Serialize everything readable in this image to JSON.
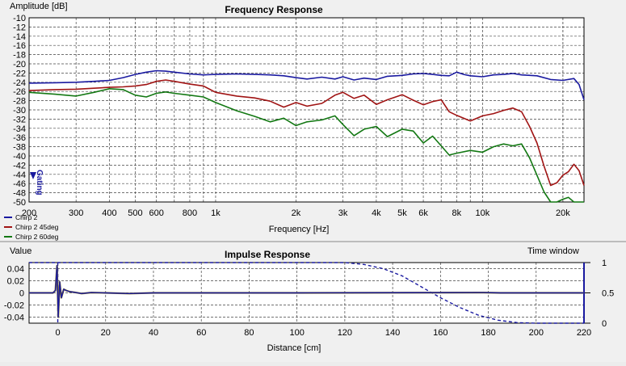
{
  "chart_data": [
    {
      "type": "line",
      "title": "Frequency Response",
      "ylabel": "Amplitude [dB]",
      "xlabel": "Frequency [Hz]",
      "xscale": "log",
      "xlim": [
        200,
        24000
      ],
      "ylim": [
        -50,
        -10
      ],
      "grid": true,
      "legend_position": "bottom-left",
      "cursor_label": "Gating",
      "y_ticks": [
        -10,
        -12,
        -14,
        -16,
        -18,
        -20,
        -22,
        -24,
        -26,
        -28,
        -30,
        -32,
        -34,
        -36,
        -38,
        -40,
        -42,
        -44,
        -46,
        -48,
        -50
      ],
      "x_ticks": [
        {
          "value": 200,
          "label": "200"
        },
        {
          "value": 300,
          "label": "300"
        },
        {
          "value": 400,
          "label": "400"
        },
        {
          "value": 500,
          "label": "500"
        },
        {
          "value": 600,
          "label": "600"
        },
        {
          "value": 800,
          "label": "800"
        },
        {
          "value": 1000,
          "label": "1k"
        },
        {
          "value": 2000,
          "label": "2k"
        },
        {
          "value": 3000,
          "label": "3k"
        },
        {
          "value": 4000,
          "label": "4k"
        },
        {
          "value": 5000,
          "label": "5k"
        },
        {
          "value": 6000,
          "label": "6k"
        },
        {
          "value": 8000,
          "label": "8k"
        },
        {
          "value": 10000,
          "label": "10k"
        },
        {
          "value": 20000,
          "label": "20k"
        }
      ],
      "series": [
        {
          "name": "Chirp 2",
          "color": "#1a1aa0",
          "points": [
            [
              200,
              -24.2
            ],
            [
              250,
              -24.1
            ],
            [
              300,
              -24
            ],
            [
              350,
              -23.8
            ],
            [
              400,
              -23.6
            ],
            [
              450,
              -23
            ],
            [
              500,
              -22.3
            ],
            [
              550,
              -21.8
            ],
            [
              600,
              -21.5
            ],
            [
              650,
              -21.6
            ],
            [
              700,
              -21.8
            ],
            [
              800,
              -22.2
            ],
            [
              900,
              -22.4
            ],
            [
              1000,
              -22.3
            ],
            [
              1200,
              -22.2
            ],
            [
              1400,
              -22.3
            ],
            [
              1600,
              -22.4
            ],
            [
              1800,
              -22.6
            ],
            [
              2000,
              -23
            ],
            [
              2200,
              -23.3
            ],
            [
              2500,
              -22.9
            ],
            [
              2800,
              -23.3
            ],
            [
              3000,
              -22.8
            ],
            [
              3300,
              -23.5
            ],
            [
              3600,
              -23.1
            ],
            [
              4000,
              -23.4
            ],
            [
              4400,
              -22.7
            ],
            [
              5000,
              -22.5
            ],
            [
              5500,
              -22.2
            ],
            [
              6000,
              -22.1
            ],
            [
              6500,
              -22.3
            ],
            [
              7000,
              -22.5
            ],
            [
              7500,
              -22.6
            ],
            [
              8000,
              -21.8
            ],
            [
              8500,
              -22.3
            ],
            [
              9000,
              -22.6
            ],
            [
              10000,
              -22.8
            ],
            [
              11000,
              -22.4
            ],
            [
              12000,
              -22.3
            ],
            [
              13000,
              -22.1
            ],
            [
              14000,
              -22.4
            ],
            [
              16000,
              -22.6
            ],
            [
              18000,
              -23.4
            ],
            [
              20000,
              -23.6
            ],
            [
              22000,
              -23.2
            ],
            [
              23000,
              -24.5
            ],
            [
              24000,
              -27.8
            ]
          ]
        },
        {
          "name": "Chirp 2 45deg",
          "color": "#a01414",
          "points": [
            [
              200,
              -25.8
            ],
            [
              250,
              -25.6
            ],
            [
              300,
              -25.5
            ],
            [
              350,
              -25.3
            ],
            [
              400,
              -25.1
            ],
            [
              450,
              -25
            ],
            [
              500,
              -24.8
            ],
            [
              550,
              -24.5
            ],
            [
              600,
              -23.8
            ],
            [
              650,
              -23.5
            ],
            [
              700,
              -23.8
            ],
            [
              800,
              -24.4
            ],
            [
              900,
              -24.8
            ],
            [
              1000,
              -26.2
            ],
            [
              1200,
              -27
            ],
            [
              1400,
              -27.4
            ],
            [
              1600,
              -28.1
            ],
            [
              1800,
              -29.4
            ],
            [
              2000,
              -28.4
            ],
            [
              2200,
              -29.2
            ],
            [
              2500,
              -28.6
            ],
            [
              2800,
              -26.8
            ],
            [
              3000,
              -26.2
            ],
            [
              3300,
              -27.5
            ],
            [
              3600,
              -26.8
            ],
            [
              4000,
              -28.8
            ],
            [
              4400,
              -27.8
            ],
            [
              5000,
              -26.7
            ],
            [
              5500,
              -27.9
            ],
            [
              6000,
              -28.9
            ],
            [
              6500,
              -28.2
            ],
            [
              7000,
              -27.8
            ],
            [
              7500,
              -30.4
            ],
            [
              8000,
              -31.2
            ],
            [
              9000,
              -32.4
            ],
            [
              10000,
              -31.3
            ],
            [
              11000,
              -30.8
            ],
            [
              12000,
              -30.1
            ],
            [
              13000,
              -29.6
            ],
            [
              14000,
              -30.4
            ],
            [
              15000,
              -33.6
            ],
            [
              16000,
              -37.2
            ],
            [
              17000,
              -42.2
            ],
            [
              18000,
              -46.4
            ],
            [
              19000,
              -45.8
            ],
            [
              20000,
              -44.2
            ],
            [
              21000,
              -43.4
            ],
            [
              22000,
              -41.8
            ],
            [
              23000,
              -43.2
            ],
            [
              24000,
              -46.4
            ]
          ]
        },
        {
          "name": "Chirp 2 60deg",
          "color": "#137813",
          "points": [
            [
              200,
              -26.2
            ],
            [
              250,
              -26.6
            ],
            [
              300,
              -27
            ],
            [
              350,
              -26.2
            ],
            [
              400,
              -25.4
            ],
            [
              450,
              -25.6
            ],
            [
              500,
              -26.8
            ],
            [
              550,
              -27.2
            ],
            [
              600,
              -26.4
            ],
            [
              650,
              -26.1
            ],
            [
              700,
              -26.4
            ],
            [
              800,
              -26.8
            ],
            [
              900,
              -27.2
            ],
            [
              1000,
              -28.4
            ],
            [
              1200,
              -30.2
            ],
            [
              1400,
              -31.4
            ],
            [
              1600,
              -32.6
            ],
            [
              1800,
              -31.8
            ],
            [
              2000,
              -33.4
            ],
            [
              2200,
              -32.6
            ],
            [
              2500,
              -32.2
            ],
            [
              2800,
              -31.3
            ],
            [
              3000,
              -33.2
            ],
            [
              3300,
              -35.6
            ],
            [
              3600,
              -34.2
            ],
            [
              4000,
              -33.6
            ],
            [
              4400,
              -35.8
            ],
            [
              5000,
              -34.2
            ],
            [
              5500,
              -34.6
            ],
            [
              6000,
              -37.2
            ],
            [
              6500,
              -35.7
            ],
            [
              7000,
              -37.8
            ],
            [
              7500,
              -39.8
            ],
            [
              8000,
              -39.4
            ],
            [
              9000,
              -38.8
            ],
            [
              10000,
              -39.2
            ],
            [
              11000,
              -38
            ],
            [
              12000,
              -37.4
            ],
            [
              13000,
              -37.8
            ],
            [
              14000,
              -37.4
            ],
            [
              15000,
              -40.4
            ],
            [
              16000,
              -44.2
            ],
            [
              17000,
              -47.8
            ],
            [
              18000,
              -50.6
            ],
            [
              19000,
              -52
            ],
            [
              20000,
              -49.4
            ],
            [
              21000,
              -49
            ],
            [
              22000,
              -50.2
            ],
            [
              23000,
              -52
            ],
            [
              24000,
              -52
            ]
          ]
        }
      ]
    },
    {
      "type": "line",
      "title": "Impulse Response",
      "ylabel": "Value",
      "xlabel": "Distance [cm]",
      "y2label": "Time window",
      "xlim": [
        -12,
        220
      ],
      "ylim": [
        -0.05,
        0.05
      ],
      "y2lim": [
        0,
        1
      ],
      "grid": true,
      "x_ticks": [
        0,
        20,
        40,
        60,
        80,
        100,
        120,
        140,
        160,
        180,
        200,
        220
      ],
      "y_ticks": [
        {
          "value": 0.04,
          "label": "0.04"
        },
        {
          "value": 0.02,
          "label": "0.02"
        },
        {
          "value": 0,
          "label": "0"
        },
        {
          "value": -0.02,
          "label": "-0.02"
        },
        {
          "value": -0.04,
          "label": "-0.04"
        }
      ],
      "y2_ticks": [
        {
          "value": 1,
          "label": "1"
        },
        {
          "value": 0.5,
          "label": "0.5"
        },
        {
          "value": 0,
          "label": "0"
        }
      ],
      "impulse": {
        "color": "#1a1aa0",
        "points": [
          [
            -12,
            0
          ],
          [
            -2,
            0
          ],
          [
            -1,
            0.004
          ],
          [
            -0.3,
            0.045
          ],
          [
            0.2,
            -0.04
          ],
          [
            0.8,
            0.018
          ],
          [
            1.5,
            -0.008
          ],
          [
            2.5,
            0.006
          ],
          [
            3.5,
            0.004
          ],
          [
            5,
            0.002
          ],
          [
            7,
            0.001
          ],
          [
            10,
            -0.001
          ],
          [
            14,
            0.0005
          ],
          [
            20,
            0
          ],
          [
            30,
            -0.001
          ],
          [
            40,
            0
          ],
          [
            100,
            0
          ],
          [
            178,
            0.0005
          ],
          [
            185,
            0
          ],
          [
            200,
            0
          ],
          [
            220,
            0
          ]
        ]
      },
      "window": {
        "color": "#1a1aa0",
        "style": "dashed",
        "points": [
          [
            -12,
            1
          ],
          [
            0,
            1
          ],
          [
            120,
            1
          ],
          [
            128,
            0.97
          ],
          [
            136,
            0.9
          ],
          [
            144,
            0.78
          ],
          [
            152,
            0.6
          ],
          [
            160,
            0.42
          ],
          [
            168,
            0.26
          ],
          [
            176,
            0.13
          ],
          [
            184,
            0.05
          ],
          [
            192,
            0.01
          ],
          [
            200,
            0
          ],
          [
            220,
            0
          ]
        ]
      }
    }
  ]
}
